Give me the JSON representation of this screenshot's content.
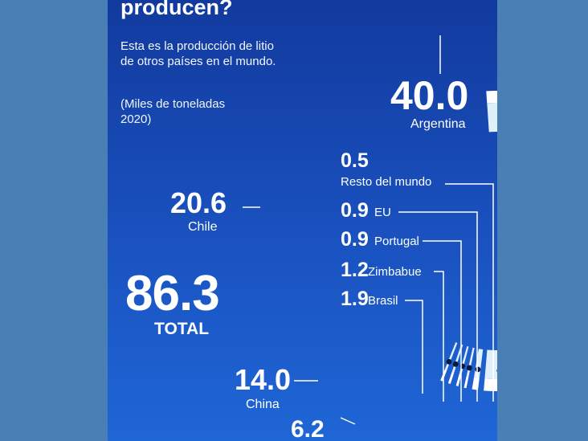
{
  "title": "producen?",
  "description": "Esta es la producción de litio de otros países en el mundo.",
  "units": "(Miles de toneladas 2020)",
  "colors": {
    "background": "#4a7fb5",
    "panel": "#1a52c0",
    "ring_light": "#ffffff",
    "ring_inner": "#dff0fb"
  },
  "chart_data": {
    "type": "donut",
    "total_value": "86.3",
    "total_label": "TOTAL",
    "slices": [
      {
        "label": "Argentina",
        "value_text": "40.0",
        "value": 40.0
      },
      {
        "label": "Chile",
        "value_text": "20.6",
        "value": 20.6
      },
      {
        "label": "China",
        "value_text": "14.0",
        "value": 14.0
      },
      {
        "label": "",
        "value_text": "6.2",
        "value": 6.2
      },
      {
        "label": "Brasil",
        "value_text": "1.9",
        "value": 1.9
      },
      {
        "label": "Zimbabue",
        "value_text": "1.2",
        "value": 1.2
      },
      {
        "label": "Portugal",
        "value_text": "0.9",
        "value": 0.9
      },
      {
        "label": "EU",
        "value_text": "0.9",
        "value": 0.9
      },
      {
        "label": "Resto del mundo",
        "value_text": "0.5",
        "value": 0.5
      }
    ]
  }
}
